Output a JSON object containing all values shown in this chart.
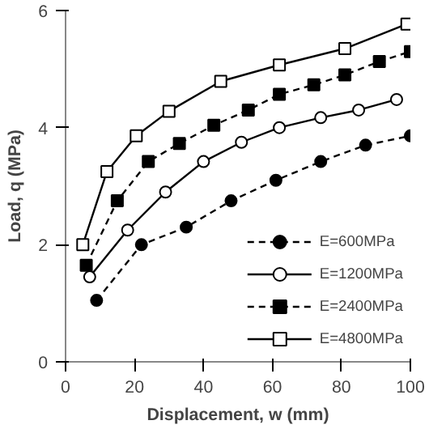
{
  "chart_data": {
    "type": "line",
    "xlabel": "Displacement, w (mm)",
    "ylabel": "Load, q (MPa)",
    "xlim": [
      0,
      100
    ],
    "ylim": [
      0,
      6
    ],
    "xticks": [
      0,
      20,
      40,
      60,
      80,
      100
    ],
    "yticks": [
      0,
      2,
      4,
      6
    ],
    "grid": false,
    "legend": "bottom right",
    "series": [
      {
        "name": "E=600MPa",
        "color": "#000000",
        "marker": "circle",
        "line_style": "dashed",
        "x": [
          9,
          22,
          35,
          48,
          61,
          74,
          87,
          100
        ],
        "values": [
          1.05,
          2.0,
          2.3,
          2.75,
          3.1,
          3.42,
          3.7,
          3.86
        ]
      },
      {
        "name": "E=1200MPa",
        "color": "#000000",
        "marker": "circle",
        "line_style": "solid",
        "x": [
          7,
          18,
          29,
          40,
          51,
          62,
          74,
          85,
          96
        ],
        "values": [
          1.45,
          2.25,
          2.9,
          3.42,
          3.75,
          4.0,
          4.17,
          4.3,
          4.48
        ]
      },
      {
        "name": "E=2400MPa",
        "color": "#000000",
        "marker": "square",
        "line_style": "dashed",
        "x": [
          6,
          15,
          24,
          33,
          43,
          53,
          62,
          72,
          81,
          91,
          100
        ],
        "values": [
          1.65,
          2.75,
          3.42,
          3.73,
          4.04,
          4.3,
          4.57,
          4.73,
          4.9,
          5.13,
          5.3
        ]
      },
      {
        "name": "E=4800MPa",
        "color": "#000000",
        "marker": "square",
        "line_style": "solid",
        "x": [
          5,
          12,
          20.5,
          30,
          45,
          62,
          81,
          99
        ],
        "values": [
          2.0,
          3.25,
          3.86,
          4.28,
          4.79,
          5.07,
          5.35,
          5.77
        ]
      }
    ]
  }
}
